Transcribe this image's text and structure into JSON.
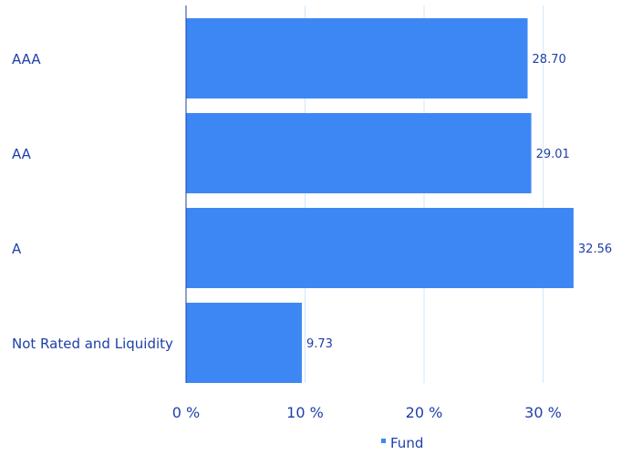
{
  "chart_data": {
    "type": "bar",
    "orientation": "horizontal",
    "categories": [
      "AAA",
      "AA",
      "A",
      "Not Rated and Liquidity"
    ],
    "series": [
      {
        "name": "Fund",
        "values": [
          28.7,
          29.01,
          32.56,
          9.73
        ],
        "labels": [
          "28.70",
          "29.01",
          "32.56",
          "9.73"
        ]
      }
    ],
    "x_ticks": [
      "0 %",
      "10 %",
      "20 %",
      "30 %"
    ],
    "xlim": [
      0,
      36
    ],
    "grid": true,
    "legend_position": "bottom-center",
    "colors": {
      "bar": "#3d87f5",
      "text": "#1f3fa8",
      "grid": "#d5e6f5",
      "axis": "#1f3fa8"
    }
  }
}
